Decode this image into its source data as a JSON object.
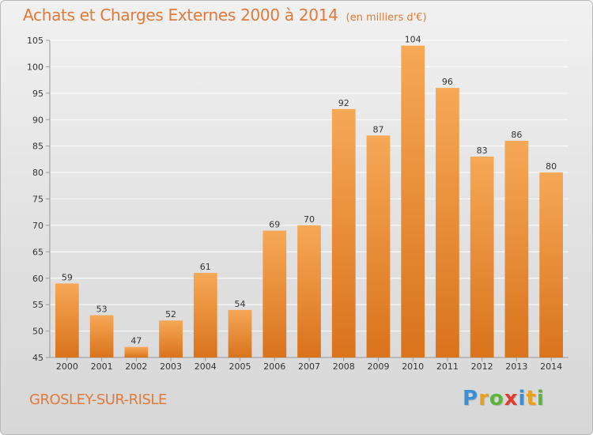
{
  "header": {
    "title": "Achats et Charges Externes 2000 à 2014",
    "unit": "(en milliers d'€)"
  },
  "footer": {
    "city": "GROSLEY-SUR-RISLE",
    "logo": [
      "P",
      "r",
      "o",
      "x",
      "i",
      "t",
      "i"
    ],
    "logo_colors": [
      "#3a8fd6",
      "#e9a11b",
      "#5bb53a",
      "#e23a2a",
      "#3a8fd6",
      "#e9a11b",
      "#5bb53a"
    ]
  },
  "colors": {
    "bar_top": "#f6a857",
    "bar_bottom": "#d9731c",
    "grid": "#ffffff",
    "axis_text": "#333333"
  },
  "chart_data": {
    "type": "bar",
    "title": "Achats et Charges Externes 2000 à 2014",
    "categories": [
      "2000",
      "2001",
      "2002",
      "2003",
      "2004",
      "2005",
      "2006",
      "2007",
      "2008",
      "2009",
      "2010",
      "2011",
      "2012",
      "2013",
      "2014"
    ],
    "values": [
      59,
      53,
      47,
      52,
      61,
      54,
      69,
      70,
      92,
      87,
      104,
      96,
      83,
      86,
      80
    ],
    "ylim": [
      45,
      105
    ],
    "yticks": [
      45,
      50,
      55,
      60,
      65,
      70,
      75,
      80,
      85,
      90,
      95,
      100,
      105
    ],
    "grid": true,
    "xlabel": "",
    "ylabel": ""
  }
}
